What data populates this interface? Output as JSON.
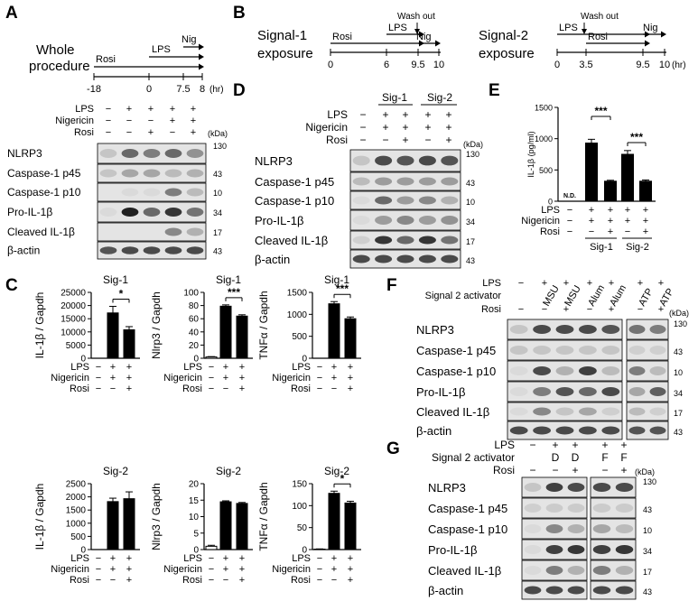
{
  "figure": {
    "panels": {
      "A": {
        "label": "A",
        "procedure_title": [
          "Whole",
          "procedure"
        ],
        "timeline_arrows": [
          "Rosi",
          "LPS",
          "Nig"
        ],
        "timeline_ticks": [
          "-18",
          "0",
          "7.5",
          "8"
        ],
        "time_unit": "(hr)",
        "conditions": [
          {
            "name": "LPS",
            "states": [
              "−",
              "+",
              "+",
              "+",
              "+"
            ]
          },
          {
            "name": "Nigericin",
            "states": [
              "−",
              "−",
              "−",
              "+",
              "+"
            ]
          },
          {
            "name": "Rosi",
            "states": [
              "−",
              "−",
              "+",
              "−",
              "+"
            ]
          }
        ],
        "blots": [
          "NLRP3",
          "Caspase-1 p45",
          "Caspase-1 p10",
          "Pro-IL-1β",
          "Cleaved IL-1β",
          "β-actin"
        ],
        "kda_header": "(kDa)",
        "kda_markers": [
          "130",
          "43",
          "10",
          "34",
          "17",
          "43"
        ]
      },
      "B": {
        "label": "B",
        "sig1": {
          "title": [
            "Signal-1",
            "exposure"
          ],
          "wash_label": "Wash out",
          "arrow_labels": [
            "Rosi",
            "LPS",
            "Nig"
          ],
          "ticks": [
            "0",
            "6",
            "9.5",
            "10"
          ]
        },
        "sig2": {
          "title": [
            "Signal-2",
            "exposure"
          ],
          "wash_label": "Wash out",
          "arrow_labels": [
            "LPS",
            "Rosi",
            "Nig"
          ],
          "ticks": [
            "0",
            "3.5",
            "9.5",
            "10"
          ],
          "unit": "(hr)"
        }
      },
      "D": {
        "label": "D",
        "groups": [
          "Sig-1",
          "Sig-2"
        ],
        "conditions": [
          {
            "name": "LPS",
            "states": [
              "−",
              "+",
              "+",
              "+",
              "+"
            ]
          },
          {
            "name": "Nigericin",
            "states": [
              "−",
              "+",
              "+",
              "+",
              "+"
            ]
          },
          {
            "name": "Rosi",
            "states": [
              "−",
              "−",
              "+",
              "−",
              "+"
            ]
          }
        ],
        "blots": [
          "NLRP3",
          "Caspase-1 p45",
          "Caspase-1 p10",
          "Pro-IL-1β",
          "Cleaved IL-1β",
          "β-actin"
        ],
        "kda_header": "(kDa)",
        "kda_markers": [
          "130",
          "43",
          "10",
          "34",
          "17",
          "43"
        ]
      },
      "E": {
        "label": "E",
        "nd_label": "N.D.",
        "sig_marks": [
          "***",
          "***"
        ],
        "conditions": [
          {
            "name": "LPS",
            "states": [
              "−",
              "+",
              "+",
              "+",
              "+"
            ]
          },
          {
            "name": "Nigericin",
            "states": [
              "−",
              "+",
              "+",
              "+",
              "+"
            ]
          },
          {
            "name": "Rosi",
            "states": [
              "−",
              "−",
              "+",
              "−",
              "+"
            ]
          }
        ],
        "groups": [
          "Sig-1",
          "Sig-2"
        ]
      },
      "C": {
        "label": "C",
        "conditions": [
          {
            "name": "LPS",
            "states": [
              "−",
              "+",
              "+"
            ]
          },
          {
            "name": "Nigericin",
            "states": [
              "−",
              "+",
              "+"
            ]
          },
          {
            "name": "Rosi",
            "states": [
              "−",
              "−",
              "+"
            ]
          }
        ]
      },
      "F": {
        "label": "F",
        "conditions": [
          {
            "name": "LPS",
            "states": [
              "−",
              "+",
              "+",
              "+",
              "+",
              "+",
              "+"
            ]
          },
          {
            "name": "Signal 2 activator",
            "states": [
              "",
              "MSU",
              "MSU",
              "Alum",
              "Alum",
              "ATP",
              "ATP"
            ]
          },
          {
            "name": "Rosi",
            "states": [
              "−",
              "−",
              "+",
              "−",
              "+",
              "−",
              "+"
            ]
          }
        ],
        "blots": [
          "NLRP3",
          "Caspase-1 p45",
          "Caspase-1 p10",
          "Pro-IL-1β",
          "Cleaved IL-1β",
          "β-actin"
        ],
        "kda_header": "(kDa)",
        "kda_markers": [
          "130",
          "43",
          "10",
          "34",
          "17",
          "43"
        ]
      },
      "G": {
        "label": "G",
        "conditions": [
          {
            "name": "LPS",
            "states": [
              "−",
              "+",
              "+",
              "+",
              "+"
            ]
          },
          {
            "name": "Signal 2 activator",
            "states": [
              "",
              "D",
              "D",
              "F",
              "F"
            ]
          },
          {
            "name": "Rosi",
            "states": [
              "−",
              "−",
              "+",
              "−",
              "+"
            ]
          }
        ],
        "blots": [
          "NLRP3",
          "Caspase-1 p45",
          "Caspase-1 p10",
          "Pro-IL-1β",
          "Cleaved IL-1β",
          "β-actin"
        ],
        "kda_header": "(kDa)",
        "kda_markers": [
          "130",
          "43",
          "10",
          "34",
          "17",
          "43"
        ]
      }
    }
  },
  "chart_data": [
    {
      "id": "C1",
      "type": "bar",
      "title": "Sig-1",
      "ylabel": "IL-1β / Gapdh",
      "categories": [
        "1",
        "2",
        "3"
      ],
      "values": [
        0,
        17200,
        10800
      ],
      "errors": [
        0,
        2500,
        1200
      ],
      "ylim": [
        0,
        25000
      ],
      "yticks": [
        "0",
        "5000",
        "10000",
        "15000",
        "20000",
        "25000"
      ],
      "significance": [
        "*"
      ],
      "bar_colors": [
        "#000000",
        "#000000",
        "#000000"
      ]
    },
    {
      "id": "C2",
      "type": "bar",
      "title": "Sig-1",
      "ylabel": "Nlrp3 / Gapdh",
      "categories": [
        "1",
        "2",
        "3"
      ],
      "values": [
        2,
        79,
        64
      ],
      "errors": [
        0.5,
        2,
        2
      ],
      "ylim": [
        0,
        100
      ],
      "yticks": [
        "0",
        "20",
        "40",
        "60",
        "80",
        "100"
      ],
      "significance": [
        "***"
      ],
      "bar_colors": [
        "#ffffff",
        "#000000",
        "#000000"
      ]
    },
    {
      "id": "C3",
      "type": "bar",
      "title": "Sig-1",
      "ylabel": "TNFα / Gapdh",
      "categories": [
        "1",
        "2",
        "3"
      ],
      "values": [
        8,
        1240,
        900
      ],
      "errors": [
        5,
        50,
        40
      ],
      "ylim": [
        0,
        1500
      ],
      "yticks": [
        "0",
        "500",
        "1000",
        "1500"
      ],
      "significance": [
        "***"
      ],
      "bar_colors": [
        "#000000",
        "#000000",
        "#000000"
      ]
    },
    {
      "id": "C4",
      "type": "bar",
      "title": "Sig-2",
      "ylabel": "IL-1β / Gapdh",
      "categories": [
        "1",
        "2",
        "3"
      ],
      "values": [
        0,
        1820,
        1930
      ],
      "errors": [
        0,
        130,
        260
      ],
      "ylim": [
        0,
        2500
      ],
      "yticks": [
        "0",
        "500",
        "1000",
        "1500",
        "2000",
        "2500"
      ],
      "significance": [],
      "bar_colors": [
        "#000000",
        "#000000",
        "#000000"
      ]
    },
    {
      "id": "C5",
      "type": "bar",
      "title": "Sig-2",
      "ylabel": "Nlrp3 / Gapdh",
      "categories": [
        "1",
        "2",
        "3"
      ],
      "values": [
        1,
        14.5,
        14
      ],
      "errors": [
        0.3,
        0.3,
        0.3
      ],
      "ylim": [
        0,
        20
      ],
      "yticks": [
        "0",
        "5",
        "10",
        "15",
        "20"
      ],
      "significance": [],
      "bar_colors": [
        "#ffffff",
        "#000000",
        "#000000"
      ]
    },
    {
      "id": "C6",
      "type": "bar",
      "title": "Sig-2",
      "ylabel": "TNFα / Gapdh",
      "categories": [
        "1",
        "2",
        "3"
      ],
      "values": [
        1,
        128,
        106
      ],
      "errors": [
        0.5,
        5,
        4
      ],
      "ylim": [
        0,
        150
      ],
      "yticks": [
        "0",
        "50",
        "100",
        "150"
      ],
      "significance": [
        "*"
      ],
      "bar_colors": [
        "#000000",
        "#000000",
        "#000000"
      ]
    },
    {
      "id": "E",
      "type": "bar",
      "title": "",
      "ylabel": "IL-1β (pg/ml)",
      "categories": [
        "1",
        "2",
        "3",
        "4",
        "5"
      ],
      "values": [
        0,
        930,
        320,
        750,
        320
      ],
      "errors": [
        0,
        60,
        15,
        60,
        20
      ],
      "ylim": [
        0,
        1500
      ],
      "yticks": [
        "0",
        "500",
        "1000",
        "1500"
      ],
      "significance": [
        "***",
        "***"
      ],
      "bar_colors": [
        "#000000",
        "#000000",
        "#000000",
        "#000000",
        "#000000"
      ]
    }
  ]
}
